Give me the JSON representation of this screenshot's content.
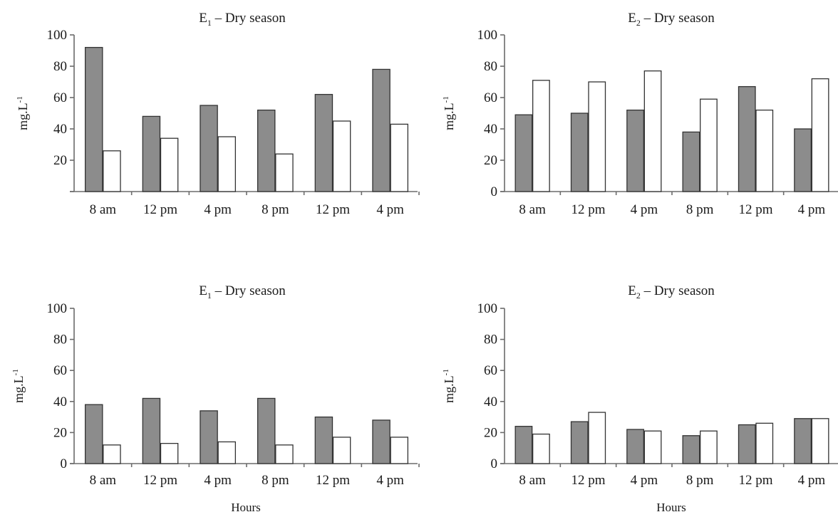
{
  "colors": {
    "dark_bar": "#8c8c8c",
    "light_bar": "#ffffff",
    "outline": "#333333",
    "axis": "#6b6b6b"
  },
  "chart_data": [
    {
      "type": "bar",
      "title_main": "E",
      "title_sub": "1",
      "title_rest": " – Dry season",
      "ylabel_main": "mg.L",
      "ylabel_sup": "-1",
      "xlabel": "",
      "ylim": [
        0,
        100
      ],
      "yticks": [
        "",
        "20",
        "40",
        "60",
        "80",
        "100"
      ],
      "categories": [
        "8 am",
        "12 pm",
        "4 pm",
        "8 pm",
        "12 pm",
        "4 pm"
      ],
      "series": [
        {
          "values": [
            92,
            48,
            55,
            52,
            62,
            78
          ]
        },
        {
          "values": [
            26,
            34,
            35,
            24,
            45,
            43
          ]
        }
      ]
    },
    {
      "type": "bar",
      "title_main": "E",
      "title_sub": "2",
      "title_rest": " – Dry season",
      "ylabel_main": "mg.L",
      "ylabel_sup": "-1",
      "xlabel": "",
      "ylim": [
        0,
        100
      ],
      "yticks": [
        "0",
        "20",
        "40",
        "60",
        "80",
        "100"
      ],
      "categories": [
        "8 am",
        "12 pm",
        "4 pm",
        "8 pm",
        "12 pm",
        "4 pm"
      ],
      "series": [
        {
          "values": [
            49,
            50,
            52,
            38,
            67,
            40
          ]
        },
        {
          "values": [
            71,
            70,
            77,
            59,
            52,
            72
          ]
        }
      ]
    },
    {
      "type": "bar",
      "title_main": "E",
      "title_sub": "1",
      "title_rest": " – Dry season",
      "ylabel_main": "mg.L",
      "ylabel_sup": "-1",
      "xlabel": "Hours",
      "ylim": [
        0,
        100
      ],
      "yticks": [
        "0",
        "20",
        "40",
        "60",
        "80",
        "100"
      ],
      "categories": [
        "8 am",
        "12 pm",
        "4 pm",
        "8 pm",
        "12 pm",
        "4 pm"
      ],
      "series": [
        {
          "values": [
            38,
            42,
            34,
            42,
            30,
            28
          ]
        },
        {
          "values": [
            12,
            13,
            14,
            12,
            17,
            17
          ]
        }
      ]
    },
    {
      "type": "bar",
      "title_main": "E",
      "title_sub": "2",
      "title_rest": " – Dry season",
      "ylabel_main": "mg.L",
      "ylabel_sup": "-1",
      "xlabel": "Hours",
      "ylim": [
        0,
        100
      ],
      "yticks": [
        "0",
        "20",
        "40",
        "60",
        "80",
        "100"
      ],
      "categories": [
        "8 am",
        "12 pm",
        "4 pm",
        "8 pm",
        "12 pm",
        "4 pm"
      ],
      "series": [
        {
          "values": [
            24,
            27,
            22,
            18,
            25,
            29
          ]
        },
        {
          "values": [
            19,
            33,
            21,
            21,
            26,
            29
          ]
        }
      ]
    }
  ]
}
